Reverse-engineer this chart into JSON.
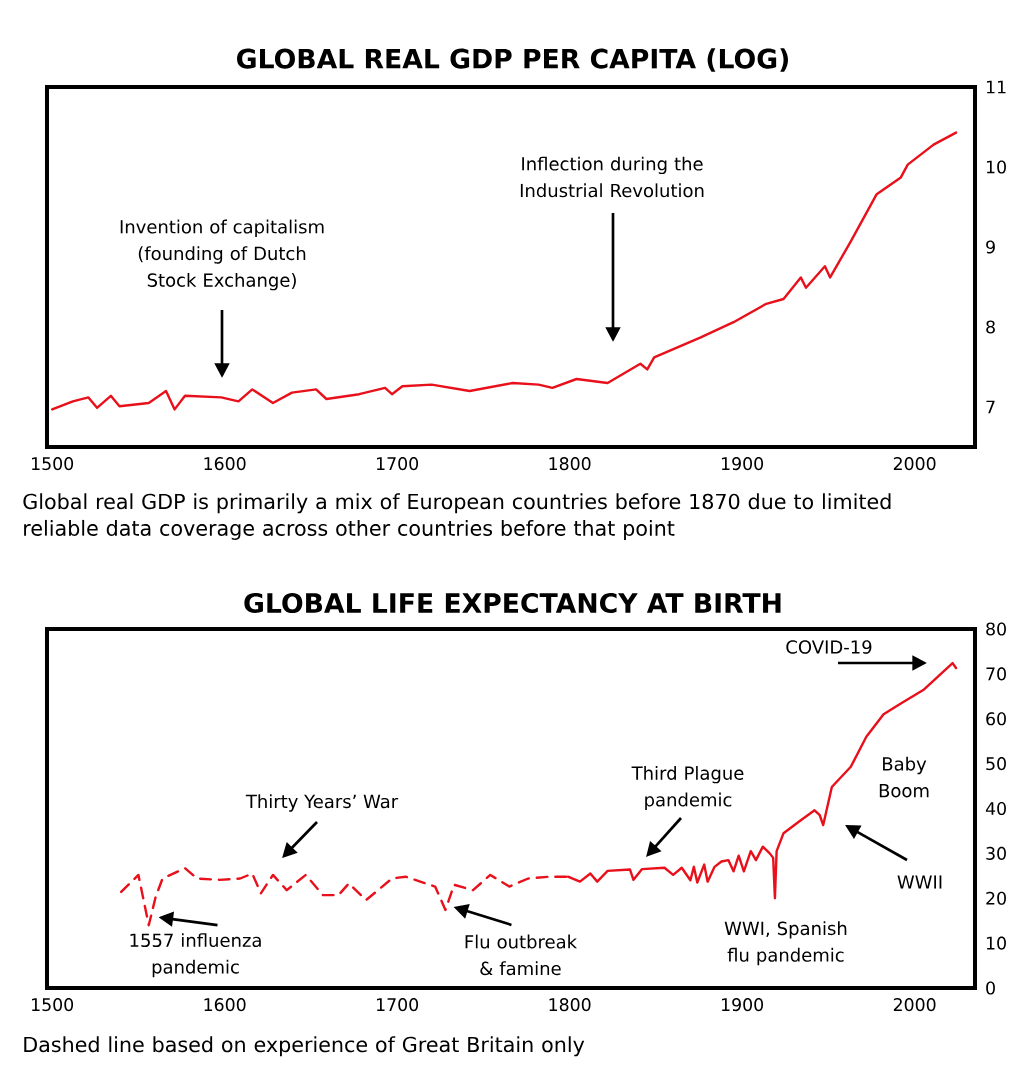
{
  "chart_data": [
    {
      "type": "line",
      "title": "GLOBAL REAL GDP PER CAPITA (LOG)",
      "color": "#e8101a",
      "xlim": [
        1497,
        2035
      ],
      "ylim": [
        6.5,
        11
      ],
      "xticks": [
        1500,
        1600,
        1700,
        1800,
        1900,
        2000
      ],
      "yticks": [
        7,
        8,
        9,
        10,
        11
      ],
      "x": [
        1500,
        1512,
        1521,
        1526,
        1534,
        1539,
        1556,
        1566,
        1571,
        1577,
        1598,
        1608,
        1616,
        1628,
        1639,
        1653,
        1659,
        1678,
        1693,
        1697,
        1703,
        1720,
        1742,
        1767,
        1782,
        1790,
        1804,
        1822,
        1841,
        1845,
        1849,
        1876,
        1895,
        1914,
        1924,
        1934,
        1937,
        1948,
        1951,
        1963,
        1978,
        1992,
        1996,
        2011,
        2024
      ],
      "values": [
        6.97,
        7.07,
        7.12,
        6.99,
        7.14,
        7.01,
        7.05,
        7.2,
        6.97,
        7.14,
        7.12,
        7.07,
        7.22,
        7.05,
        7.18,
        7.22,
        7.1,
        7.16,
        7.24,
        7.16,
        7.26,
        7.28,
        7.2,
        7.3,
        7.28,
        7.24,
        7.35,
        7.3,
        7.54,
        7.47,
        7.62,
        7.87,
        8.06,
        8.29,
        8.35,
        8.62,
        8.49,
        8.76,
        8.62,
        9.07,
        9.66,
        9.87,
        10.03,
        10.28,
        10.43
      ],
      "annotations": [
        "Invention of capitalism (founding of Dutch Stock Exchange)",
        "Inflection during the Industrial Revolution",
        "Global real GDP is primarily a mix of European countries before 1870 due to limited reliable data coverage across other countries before that point"
      ]
    },
    {
      "type": "line",
      "title": "GLOBAL LIFE EXPECTANCY AT BIRTH",
      "xlim": [
        1497,
        2035
      ],
      "ylim": [
        0,
        80
      ],
      "xticks": [
        1500,
        1600,
        1700,
        1800,
        1900,
        2000
      ],
      "yticks": [
        0,
        10,
        20,
        30,
        40,
        50,
        60,
        70,
        80
      ],
      "series": [
        {
          "color": "#e8101a",
          "line_style": "dashed",
          "x": [
            1540,
            1550,
            1556,
            1560,
            1564,
            1577,
            1584,
            1597,
            1609,
            1616,
            1621,
            1628,
            1636,
            1647,
            1657,
            1666,
            1672,
            1682,
            1697,
            1705,
            1722,
            1728,
            1733,
            1744,
            1754,
            1765,
            1776,
            1788,
            1799
          ],
          "values": [
            21.4,
            25.2,
            14.0,
            20.3,
            24.4,
            26.7,
            24.4,
            24.1,
            24.4,
            25.5,
            21.1,
            25.2,
            21.8,
            25.2,
            20.7,
            20.7,
            23.3,
            19.6,
            24.4,
            24.8,
            22.6,
            17.4,
            23.0,
            21.8,
            25.2,
            22.6,
            24.4,
            24.8,
            24.8
          ]
        },
        {
          "color": "#e8101a",
          "x": [
            1799,
            1806,
            1812,
            1816,
            1822,
            1835,
            1837,
            1842,
            1855,
            1860,
            1865,
            1870,
            1872,
            1874,
            1878,
            1880,
            1884,
            1888,
            1892,
            1895,
            1898,
            1901,
            1905,
            1908,
            1912,
            1916,
            1918,
            1919,
            1920,
            1924,
            1934,
            1942,
            1945,
            1947,
            1952,
            1963,
            1972,
            1982,
            1992,
            2005,
            2022,
            2024
          ],
          "values": [
            24.8,
            23.7,
            25.5,
            23.7,
            26.1,
            26.4,
            24.1,
            26.5,
            26.8,
            25.2,
            26.8,
            24.0,
            27.0,
            23.5,
            27.5,
            23.7,
            27.0,
            28.2,
            28.5,
            26.0,
            29.5,
            26.0,
            30.5,
            28.5,
            31.5,
            30.0,
            29.0,
            20.0,
            30.5,
            34.5,
            37.4,
            39.6,
            38.5,
            36.3,
            44.8,
            49.3,
            56.0,
            61.0,
            63.4,
            66.4,
            72.4,
            71.3
          ]
        }
      ],
      "annotations": [
        {
          "text": "1557 influenza pandemic",
          "x": 1557,
          "y": 14.0
        },
        "Thirty Years’ War",
        {
          "text": "Flu outbreak & famine",
          "x": 1728,
          "y": 17.4
        },
        "Third Plague pandemic",
        {
          "text": "WWI, Spanish flu pandemic",
          "x": 1919,
          "y": 20.0
        },
        {
          "text": "Baby Boom",
          "x": 1955,
          "y": 47
        },
        "WWII",
        "COVID-19",
        "Dashed line based on experience of Great Britain only"
      ]
    }
  ]
}
